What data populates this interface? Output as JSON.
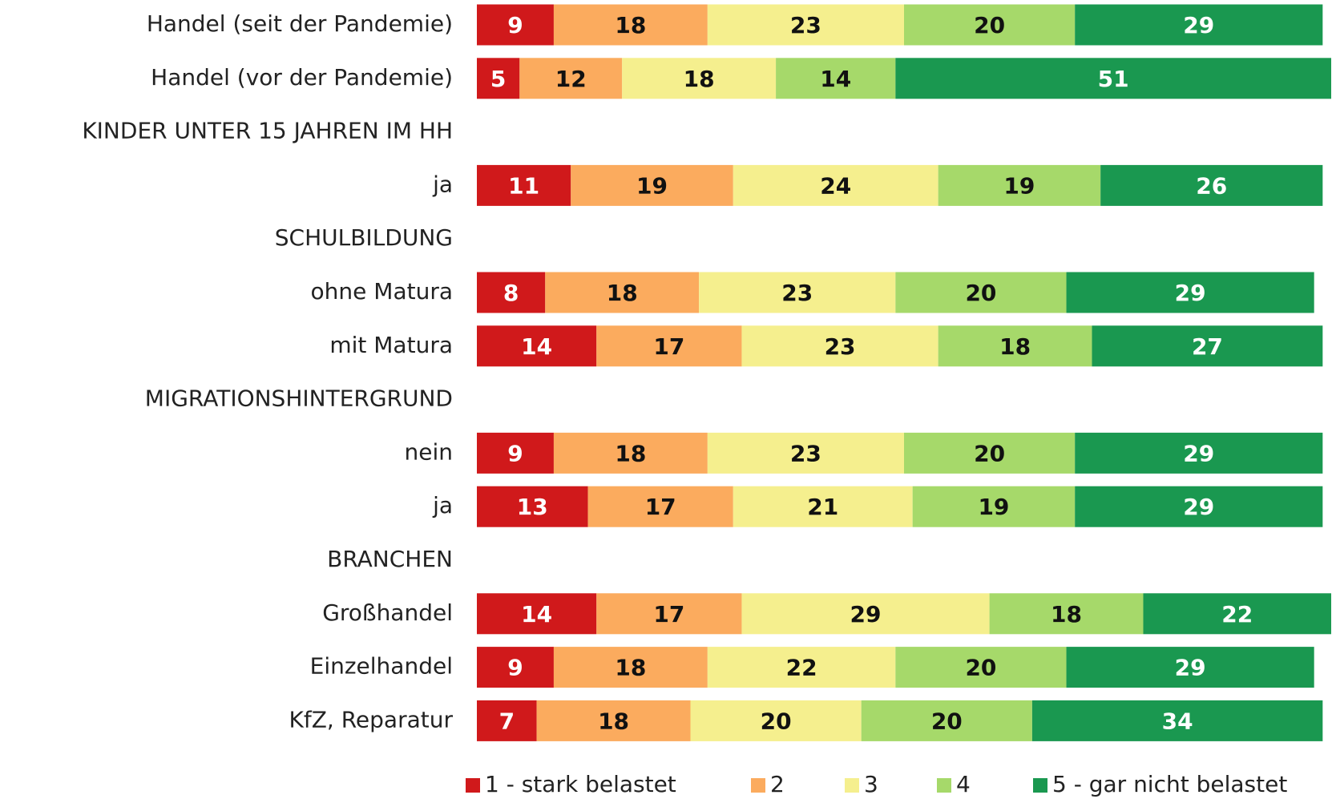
{
  "chart_data": {
    "type": "stacked-bar-horizontal",
    "categories": [
      "Handel (seit der Pandemie)",
      "Handel (vor der Pandemie)",
      "KINDER UNTER 15 JAHREN IM HH",
      "ja",
      "SCHULBILDUNG",
      "ohne Matura",
      "mit Matura",
      "MIGRATIONSHINTERGRUND",
      "nein",
      "ja",
      "BRANCHEN",
      "Großhandel",
      "Einzelhandel",
      "KfZ, Reparatur"
    ],
    "series": [
      {
        "name": "1 - stark belastet",
        "color": "#d0191b",
        "values": [
          9,
          5,
          null,
          11,
          null,
          8,
          14,
          null,
          9,
          13,
          null,
          14,
          9,
          7
        ]
      },
      {
        "name": "2",
        "color": "#fbab5e",
        "values": [
          18,
          12,
          null,
          19,
          null,
          18,
          17,
          null,
          18,
          17,
          null,
          17,
          18,
          18
        ]
      },
      {
        "name": "3",
        "color": "#f5ef8e",
        "values": [
          23,
          18,
          null,
          24,
          null,
          23,
          23,
          null,
          23,
          21,
          null,
          29,
          22,
          20
        ]
      },
      {
        "name": "4",
        "color": "#a6d96a",
        "values": [
          20,
          14,
          null,
          19,
          null,
          20,
          18,
          null,
          20,
          19,
          null,
          18,
          20,
          20
        ]
      },
      {
        "name": "5 - gar nicht belastet",
        "color": "#1a9850",
        "values": [
          29,
          51,
          null,
          26,
          null,
          29,
          27,
          null,
          29,
          29,
          null,
          22,
          29,
          34
        ]
      }
    ],
    "xlim": [
      0,
      100
    ]
  }
}
